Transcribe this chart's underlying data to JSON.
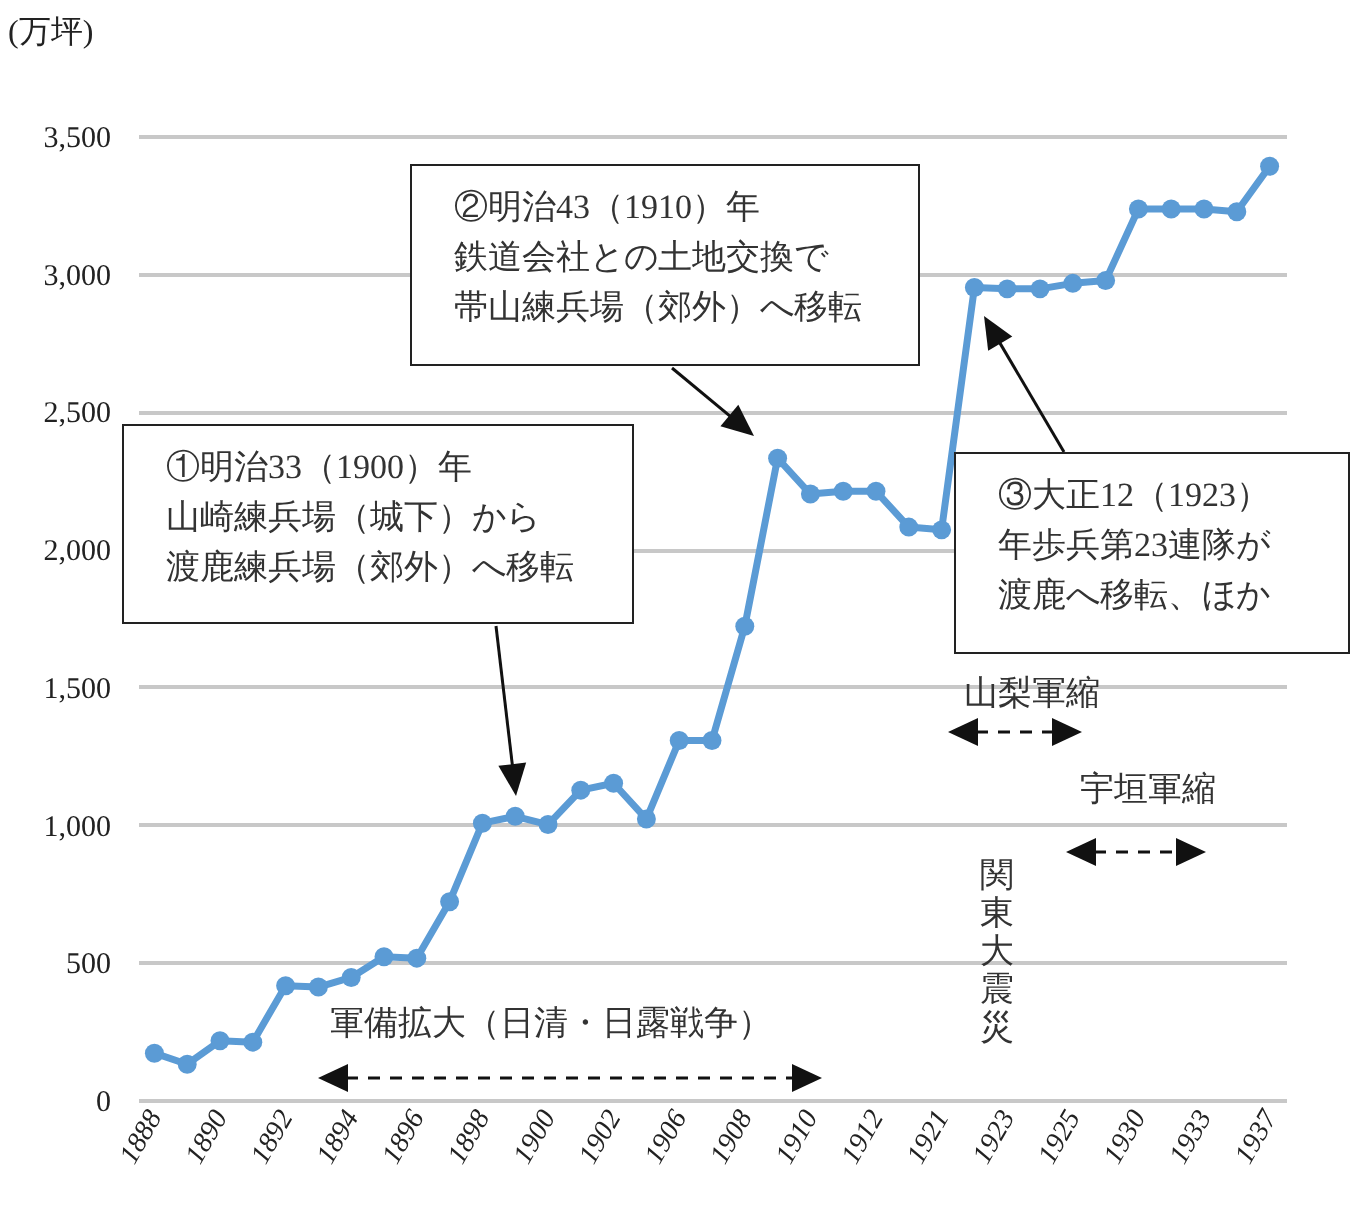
{
  "chart_data": {
    "type": "line",
    "ylabel": "(万坪)",
    "categories": [
      "1888",
      null,
      "1890",
      null,
      "1892",
      null,
      "1894",
      null,
      "1896",
      null,
      "1898",
      null,
      "1900",
      null,
      "1902",
      null,
      "1906",
      null,
      "1908",
      null,
      "1910",
      null,
      "1912",
      null,
      "1921",
      null,
      "1923",
      null,
      "1925",
      null,
      "1930",
      null,
      "1933",
      null,
      "1937"
    ],
    "series": [
      {
        "color": "#5b9bd5",
        "values": [
          170,
          130,
          215,
          210,
          415,
          410,
          445,
          520,
          515,
          720,
          1005,
          1030,
          1000,
          1125,
          1150,
          1020,
          1305,
          1305,
          1720,
          2330,
          2200,
          2210,
          2210,
          2080,
          2070,
          2950,
          2945,
          2945,
          2965,
          2975,
          3235,
          3235,
          3235,
          3225,
          3390
        ]
      }
    ],
    "ylim": [
      0,
      3500
    ],
    "yticks": [
      0,
      {
        "value": 500,
        "label": "500"
      },
      {
        "value": 1000,
        "label": "1,000"
      },
      {
        "value": 1500,
        "label": "1,500"
      },
      {
        "value": 2000,
        "label": "2,000"
      },
      {
        "value": 2500,
        "label": "2,500"
      },
      {
        "value": 3000,
        "label": "3,000"
      },
      {
        "value": 3500,
        "label": "3,500"
      }
    ],
    "grid": "y",
    "marker": "circle",
    "line_style": "solid",
    "annotations": [
      "①明治33（1900）年山崎練兵場（城下）から渡鹿練兵場（郊外）へ移転",
      "②明治43（1910）年鉄道会社との土地交換で帯山練兵場（郊外）へ移転",
      "③大正12（1923）年歩兵第23連隊が渡鹿へ移転、ほか",
      "山梨軍縮",
      "宇垣軍縮",
      "関東大震災",
      "軍備拡大（日清・日露戦争）"
    ]
  }
}
